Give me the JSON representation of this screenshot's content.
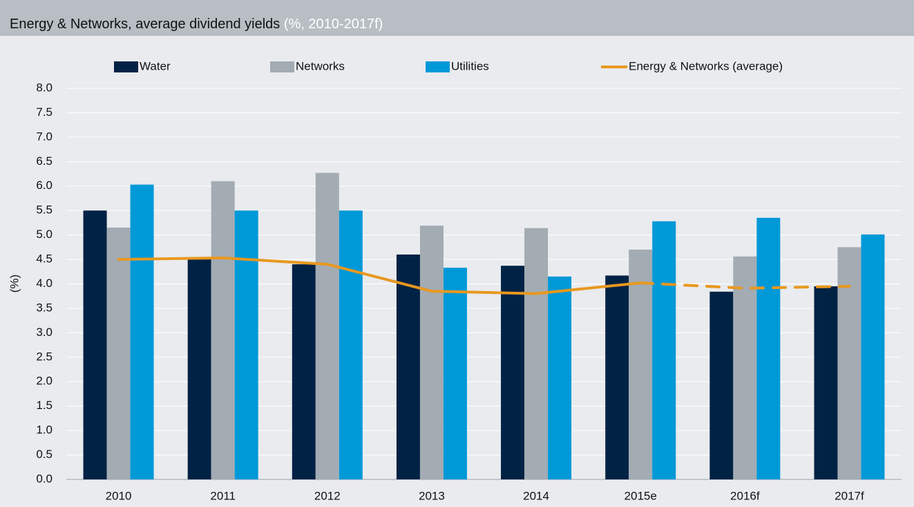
{
  "chart_data": {
    "type": "bar_line",
    "title": "Energy & Networks, average dividend yields",
    "subtitle": "(%, 2010-2017f)",
    "y_label": "(%)",
    "categories": [
      "2010",
      "2011",
      "2012",
      "2013",
      "2014",
      "2015e",
      "2016f",
      "2017f"
    ],
    "series": [
      {
        "name": "Water",
        "color": "#002244",
        "kind": "bar",
        "values": [
          5.5,
          4.5,
          4.4,
          4.6,
          4.37,
          4.17,
          3.84,
          3.95
        ]
      },
      {
        "name": "Networks",
        "color": "#a3abb3",
        "kind": "bar",
        "values": [
          5.15,
          6.1,
          6.27,
          5.19,
          5.14,
          4.7,
          4.56,
          4.75
        ]
      },
      {
        "name": "Utilities",
        "color": "#0099d8",
        "kind": "bar",
        "values": [
          6.03,
          5.5,
          5.5,
          4.33,
          4.15,
          5.28,
          5.35,
          5.01
        ]
      },
      {
        "name": "Energy & Networks (average)",
        "color": "#e8981e",
        "kind": "line",
        "dashed_from_index": 5,
        "values": [
          4.5,
          4.53,
          4.4,
          3.85,
          3.8,
          4.02,
          3.91,
          3.95
        ]
      }
    ],
    "ylim": [
      0,
      8
    ],
    "yticks": [
      {
        "value": 0,
        "label": "0.0"
      },
      {
        "value": 0.5,
        "label": "0.5"
      },
      {
        "value": 1,
        "label": "1.0"
      },
      {
        "value": 1.5,
        "label": "1.5"
      },
      {
        "value": 2,
        "label": "2.0"
      },
      {
        "value": 2.5,
        "label": "2.5"
      },
      {
        "value": 3,
        "label": "3.0"
      },
      {
        "value": 3.5,
        "label": "3.5"
      },
      {
        "value": 4,
        "label": "4.0"
      },
      {
        "value": 4.5,
        "label": "4.5"
      },
      {
        "value": 5,
        "label": "5.0"
      },
      {
        "value": 5.5,
        "label": "5.5"
      },
      {
        "value": 6,
        "label": "6.0"
      },
      {
        "value": 6.5,
        "label": "6.5"
      },
      {
        "value": 7,
        "label": "7.0"
      },
      {
        "value": 7.5,
        "label": "7.5"
      },
      {
        "value": 8,
        "label": "8.0"
      }
    ],
    "grid": true,
    "legend": "top"
  }
}
